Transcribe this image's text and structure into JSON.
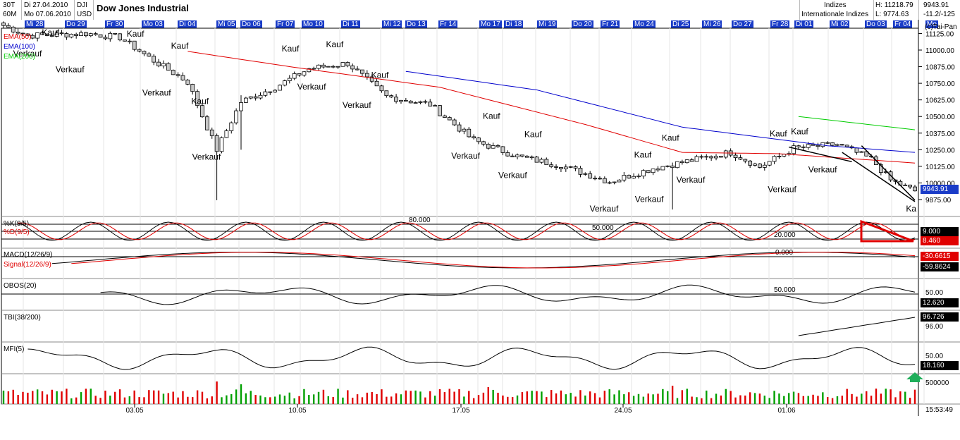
{
  "header": {
    "timeframe": "30T",
    "interval": "60M",
    "date_from": "Di 27.04.2010",
    "date_to": "Mo 07.06.2010",
    "symbol": "DJI",
    "currency": "USD",
    "title": "Dow Jones Industrial",
    "category": "Indizes",
    "subcategory": "Internationale Indizes",
    "high_label": "H: 11218.79",
    "low_label": "L: 9774.63",
    "last_price": "9943.91",
    "change": "-11.2/-125",
    "copyright": "(c)Tai-Pan"
  },
  "day_labels": [
    "Mi 28",
    "Do 29",
    "Fr 30",
    "Mo 03",
    "Di 04",
    "Mi 05",
    "Do 06",
    "Fr 07",
    "Mo 10",
    "Di 11",
    "Mi 12",
    "Do 13",
    "Fr 14",
    "Mo 17",
    "Di 18",
    "Mi 19",
    "Do 20",
    "Fr 21",
    "Mo 24",
    "Di 25",
    "Mi 26",
    "Do 27",
    "Fr 28",
    "Di 01",
    "Mi 02",
    "Do 03",
    "Fr 04",
    "Mo"
  ],
  "legend": {
    "ema50": "EMA(50)",
    "ema100": "EMA(100)",
    "ema200": "EMA(200)",
    "ema50_color": "#e00000",
    "ema100_color": "#0000cc",
    "ema200_color": "#00cc00"
  },
  "price_ticks": [
    "11125.00",
    "11000.00",
    "10875.00",
    "10750.00",
    "10625.00",
    "10500.00",
    "10375.00",
    "10250.00",
    "10125.00",
    "10000.00",
    "9875.00"
  ],
  "price_badge": "9943.91",
  "signals": [
    {
      "label": "Verkauf",
      "date": "2010-04-28 14:00"
    },
    {
      "label": "Kauf",
      "date": "2010-04-29 15:00"
    },
    {
      "label": "Verkauf",
      "date": "2010-04-30 12:00"
    },
    {
      "label": "Kauf",
      "date": "2010-05-03 11:00"
    },
    {
      "label": "Verkauf",
      "date": "2010-05-04 10:00"
    },
    {
      "label": "Kauf",
      "date": "2010-05-05 11:00"
    },
    {
      "label": "Kauf",
      "date": "2010-05-06 09:00"
    },
    {
      "label": "Verkauf",
      "date": "2010-05-06 16:00"
    },
    {
      "label": "Kauf",
      "date": "2010-05-10 11:00"
    },
    {
      "label": "Verkauf",
      "date": "2010-05-11 10:00"
    },
    {
      "label": "Kauf",
      "date": "2010-05-12 11:00"
    },
    {
      "label": "Verkauf",
      "date": "2010-05-13 11:00"
    },
    {
      "label": "Kauf",
      "date": "2010-05-14 12:00"
    },
    {
      "label": "Verkauf",
      "date": "2010-05-18 09:00"
    },
    {
      "label": "Kauf",
      "date": "2010-05-19 13:00"
    },
    {
      "label": "Verkauf",
      "date": "2010-05-20 12:00"
    },
    {
      "label": "Kauf",
      "date": "2010-05-21 10:00"
    },
    {
      "label": "Verkauf",
      "date": "2010-05-24 15:00"
    },
    {
      "label": "Kauf",
      "date": "2010-05-26 09:00"
    },
    {
      "label": "Verkauf",
      "date": "2010-05-26 16:00"
    },
    {
      "label": "Kauf",
      "date": "2010-05-27 15:00"
    },
    {
      "label": "Verkauf",
      "date": "2010-05-28 13:00"
    },
    {
      "label": "Kauf",
      "date": "2010-06-01 12:00"
    },
    {
      "label": "Verkauf",
      "date": "2010-06-01 16:00"
    },
    {
      "label": "Kauf",
      "date": "2010-06-02 11:00"
    },
    {
      "label": "Verkauf",
      "date": "2010-06-03 12:00"
    },
    {
      "label": "Ka",
      "date": "2010-06-07 12:00"
    }
  ],
  "indicators": {
    "stoch": {
      "k_label": "%K(9/5)",
      "d_label": "%D(9/5)",
      "level_high": "80.000",
      "level_mid": "50.000",
      "level_low": "20.000",
      "k_value": "9.000",
      "d_value": "8.460"
    },
    "macd": {
      "macd_label": "MACD(12/26/9)",
      "signal_label": "Signal(12/26/9)",
      "zero_label": "0.000",
      "macd_value": "-30.6615",
      "signal_value": "-59.8624"
    },
    "obos": {
      "label": "OBOS(20)",
      "level": "50.000",
      "level_right": "50.00",
      "value": "12.620"
    },
    "tbi": {
      "label": "TBI(38/200)",
      "value": "96.726",
      "level_right": "96.00"
    },
    "mfi": {
      "label": "MFI(5)",
      "value": "18.160",
      "level_right": "50.00"
    },
    "volume": {
      "scale_label": "500000"
    }
  },
  "x_axis": {
    "dates": [
      "03.05",
      "10.05",
      "17.05",
      "24.05",
      "01.06"
    ],
    "time": "15:53:49"
  },
  "colors": {
    "day_bar": "#1a3cc8",
    "volume_up": "#00a000",
    "volume_down": "#e00000",
    "candle_fill": "#c8c8c8",
    "trend_triangle": "#e00000",
    "up_arrow": "#1fae5a"
  },
  "chart_data": {
    "type": "line",
    "title": "Dow Jones Industrial",
    "xlabel": "",
    "ylabel": "",
    "ylim": [
      9790,
      11185
    ],
    "series": [
      {
        "name": "DJI",
        "type": "candlestick",
        "x_start": "2010-04-27 12:00",
        "x_end": "2010-06-07 16:00",
        "approx_points": [
          [
            0,
            11185
          ],
          [
            5,
            11110
          ],
          [
            11,
            11115
          ],
          [
            17,
            11125
          ],
          [
            24,
            11095
          ],
          [
            31,
            10920
          ],
          [
            38,
            10760
          ],
          [
            44,
            10250
          ],
          [
            49,
            10610
          ],
          [
            56,
            10720
          ],
          [
            63,
            10860
          ],
          [
            71,
            10900
          ],
          [
            79,
            10650
          ],
          [
            88,
            10590
          ],
          [
            97,
            10320
          ],
          [
            106,
            10200
          ],
          [
            115,
            10130
          ],
          [
            125,
            10010
          ],
          [
            134,
            10110
          ],
          [
            142,
            10170
          ],
          [
            150,
            10230
          ],
          [
            156,
            10120
          ],
          [
            163,
            10260
          ],
          [
            172,
            10290
          ],
          [
            179,
            10180
          ],
          [
            183,
            10020
          ],
          [
            188,
            9940
          ]
        ]
      },
      {
        "name": "EMA(50)",
        "approx_points": [
          [
            38,
            10990
          ],
          [
            60,
            10870
          ],
          [
            90,
            10720
          ],
          [
            120,
            10440
          ],
          [
            140,
            10230
          ],
          [
            160,
            10220
          ],
          [
            188,
            10150
          ]
        ]
      },
      {
        "name": "EMA(100)",
        "approx_points": [
          [
            83,
            10840
          ],
          [
            110,
            10700
          ],
          [
            140,
            10420
          ],
          [
            170,
            10280
          ],
          [
            188,
            10230
          ]
        ]
      },
      {
        "name": "EMA(200)",
        "approx_points": [
          [
            164,
            10500
          ],
          [
            188,
            10400
          ]
        ]
      }
    ]
  }
}
